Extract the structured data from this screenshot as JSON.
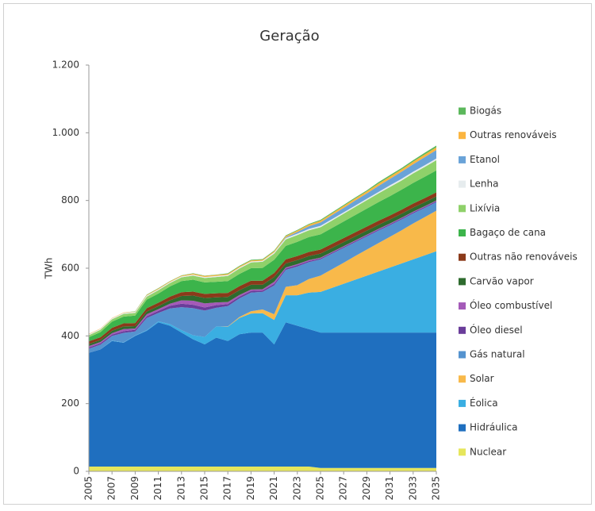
{
  "chart_data": {
    "type": "stacked_area",
    "title": "Geração",
    "y_label": "TWh",
    "x": [
      2005,
      2006,
      2007,
      2008,
      2009,
      2010,
      2011,
      2012,
      2013,
      2014,
      2015,
      2016,
      2017,
      2018,
      2019,
      2020,
      2021,
      2022,
      2023,
      2024,
      2025,
      2026,
      2027,
      2028,
      2029,
      2030,
      2031,
      2032,
      2033,
      2034,
      2035
    ],
    "xlim": [
      2005,
      2035
    ],
    "xticks": [
      2005,
      2007,
      2009,
      2011,
      2013,
      2015,
      2017,
      2019,
      2021,
      2023,
      2025,
      2027,
      2029,
      2031,
      2033,
      2035
    ],
    "ylim": [
      0,
      1200
    ],
    "yticks": [
      0,
      200,
      400,
      600,
      800,
      {
        "value": 1000,
        "label": "1.000"
      },
      {
        "value": 1200,
        "label": "1.200"
      }
    ],
    "legend": "right",
    "series": [
      {
        "name": "Nuclear",
        "color": "#e6e65c",
        "values": [
          14,
          14,
          14,
          14,
          14,
          14,
          14,
          14,
          14,
          14,
          14,
          14,
          14,
          14,
          14,
          14,
          14,
          14,
          14,
          14,
          10,
          10,
          10,
          10,
          10,
          10,
          10,
          10,
          10,
          10,
          10
        ]
      },
      {
        "name": "Hidráulica",
        "color": "#1f6fbf",
        "values": [
          336,
          346,
          371,
          366,
          386,
          401,
          426,
          416,
          396,
          376,
          361,
          381,
          371,
          391,
          396,
          396,
          361,
          426,
          416,
          406,
          400,
          400,
          400,
          400,
          400,
          400,
          400,
          400,
          400,
          400,
          400
        ]
      },
      {
        "name": "Éolica",
        "color": "#3aaee2",
        "values": [
          0,
          0,
          1,
          1,
          1,
          2,
          3,
          5,
          7,
          12,
          22,
          33,
          42,
          48,
          56,
          57,
          72,
          80,
          90,
          108,
          120,
          132,
          144,
          156,
          168,
          180,
          192,
          204,
          216,
          228,
          240
        ]
      },
      {
        "name": "Solar",
        "color": "#f8b94a",
        "values": [
          0,
          0,
          0,
          0,
          0,
          0,
          0,
          0,
          0,
          0,
          0,
          0,
          1,
          3,
          7,
          11,
          17,
          25,
          30,
          40,
          48,
          55,
          62,
          70,
          77,
          84,
          91,
          98,
          106,
          113,
          120
        ]
      },
      {
        "name": "Gás natural",
        "color": "#5593cf",
        "values": [
          12,
          14,
          14,
          28,
          12,
          36,
          25,
          46,
          68,
          80,
          78,
          55,
          60,
          55,
          55,
          52,
          85,
          50,
          55,
          50,
          48,
          46,
          44,
          41,
          39,
          37,
          34,
          32,
          30,
          27,
          25
        ]
      },
      {
        "name": "Óleo diesel",
        "color": "#6a3d9a",
        "values": [
          4,
          4,
          4,
          5,
          5,
          5,
          6,
          8,
          10,
          10,
          9,
          8,
          6,
          5,
          5,
          4,
          5,
          4,
          4,
          3,
          3,
          3,
          3,
          3,
          3,
          3,
          3,
          3,
          3,
          3,
          3
        ]
      },
      {
        "name": "Óleo combustível",
        "color": "#a45ab8",
        "values": [
          4,
          4,
          4,
          6,
          4,
          6,
          5,
          6,
          10,
          12,
          12,
          8,
          6,
          5,
          4,
          4,
          6,
          3,
          3,
          3,
          2,
          2,
          2,
          2,
          2,
          2,
          2,
          2,
          2,
          2,
          2
        ]
      },
      {
        "name": "Carvão vapor",
        "color": "#2e6b2e",
        "values": [
          6,
          6,
          7,
          8,
          7,
          8,
          9,
          10,
          13,
          15,
          16,
          15,
          15,
          14,
          14,
          13,
          14,
          12,
          12,
          12,
          12,
          12,
          12,
          12,
          12,
          12,
          12,
          12,
          12,
          12,
          12
        ]
      },
      {
        "name": "Outras não renováveis",
        "color": "#8b3a1a",
        "values": [
          8,
          8,
          9,
          9,
          9,
          10,
          10,
          11,
          11,
          12,
          12,
          12,
          12,
          12,
          12,
          12,
          12,
          12,
          12,
          12,
          12,
          12,
          12,
          12,
          12,
          12,
          12,
          12,
          12,
          12,
          12
        ]
      },
      {
        "name": "Bagaço de cana",
        "color": "#3cb44b",
        "values": [
          12,
          15,
          18,
          20,
          22,
          25,
          27,
          30,
          33,
          35,
          34,
          34,
          35,
          36,
          37,
          38,
          39,
          40,
          42,
          44,
          45,
          47,
          49,
          51,
          53,
          55,
          57,
          59,
          61,
          63,
          65
        ]
      },
      {
        "name": "Lixívia",
        "color": "#8fd16a",
        "values": [
          6,
          7,
          7,
          8,
          8,
          9,
          10,
          10,
          11,
          12,
          13,
          14,
          15,
          16,
          17,
          18,
          18,
          19,
          20,
          20,
          21,
          22,
          23,
          24,
          25,
          26,
          27,
          27,
          28,
          29,
          30
        ]
      },
      {
        "name": "Lenha",
        "color": "#e6ecee",
        "values": [
          3,
          3,
          3,
          3,
          3,
          3,
          3,
          3,
          3,
          3,
          3,
          3,
          3,
          3,
          3,
          3,
          4,
          4,
          4,
          4,
          4,
          4,
          4,
          4,
          4,
          4,
          5,
          5,
          5,
          5,
          5
        ]
      },
      {
        "name": "Etanol",
        "color": "#6aa3d8",
        "values": [
          0,
          0,
          0,
          0,
          0,
          0,
          0,
          0,
          0,
          0,
          0,
          0,
          0,
          0,
          0,
          0,
          0,
          2,
          5,
          8,
          10,
          12,
          13,
          15,
          16,
          18,
          19,
          21,
          22,
          24,
          25
        ]
      },
      {
        "name": "Outras renováveis",
        "color": "#fbb540",
        "values": [
          1,
          1,
          1,
          1,
          1,
          2,
          2,
          2,
          2,
          3,
          3,
          3,
          3,
          3,
          3,
          3,
          3,
          4,
          4,
          5,
          5,
          5,
          6,
          6,
          6,
          7,
          7,
          7,
          8,
          8,
          8
        ]
      },
      {
        "name": "Biogás",
        "color": "#5cb85c",
        "values": [
          0,
          0,
          0,
          0,
          1,
          1,
          1,
          1,
          1,
          1,
          1,
          1,
          2,
          2,
          2,
          2,
          2,
          2,
          2,
          2,
          3,
          3,
          3,
          3,
          3,
          4,
          4,
          4,
          4,
          5,
          5
        ]
      }
    ]
  }
}
